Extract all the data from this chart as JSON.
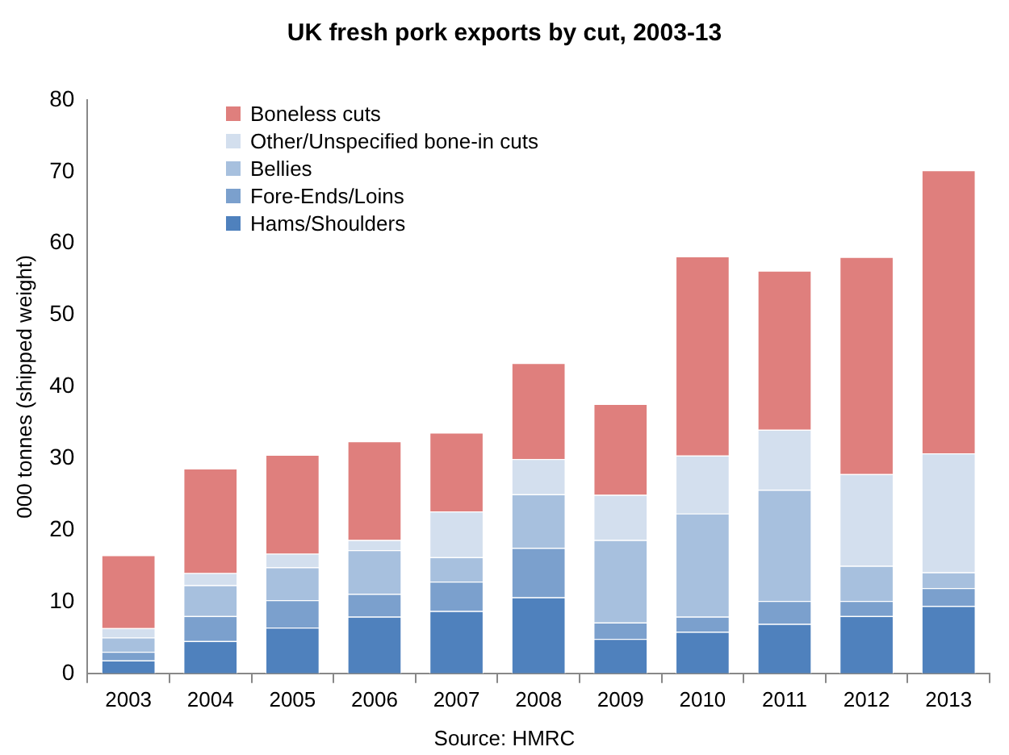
{
  "chart_data": {
    "type": "bar",
    "title": "UK fresh pork exports by cut, 2003-13",
    "ylabel": "000 tonnes (shipped weight)",
    "annotations": [
      "Source: HMRC"
    ],
    "categories": [
      "2003",
      "2004",
      "2005",
      "2006",
      "2007",
      "2008",
      "2009",
      "2010",
      "2011",
      "2012",
      "2013"
    ],
    "stacked": true,
    "ylim": [
      0,
      80
    ],
    "yticks": [
      0,
      10,
      20,
      30,
      40,
      50,
      60,
      70,
      80
    ],
    "grid": false,
    "legend": "top left",
    "series": [
      {
        "name": "Hams/Shoulders",
        "color": "#4f81bd",
        "values": [
          1.8,
          4.5,
          6.4,
          7.9,
          8.7,
          10.6,
          4.8,
          5.8,
          6.9,
          8.0,
          9.4
        ]
      },
      {
        "name": "Fore-Ends/Loins",
        "color": "#7ba0cd",
        "values": [
          1.2,
          3.5,
          3.8,
          3.2,
          4.1,
          6.9,
          2.3,
          2.1,
          3.2,
          2.1,
          2.5
        ]
      },
      {
        "name": "Bellies",
        "color": "#a7c0de",
        "values": [
          2.0,
          4.3,
          4.6,
          6.1,
          3.4,
          7.5,
          11.5,
          14.4,
          15.5,
          4.9,
          2.2
        ]
      },
      {
        "name": "Other/Unspecified bone-in cuts",
        "color": "#d3dfee",
        "values": [
          1.3,
          1.7,
          1.9,
          1.4,
          6.4,
          4.9,
          6.3,
          8.1,
          8.4,
          12.8,
          16.6
        ]
      },
      {
        "name": "Boneless cuts",
        "color": "#df7f7d",
        "values": [
          10.2,
          14.6,
          13.8,
          13.8,
          11.0,
          13.4,
          12.7,
          27.8,
          22.2,
          30.3,
          39.5
        ]
      }
    ]
  }
}
